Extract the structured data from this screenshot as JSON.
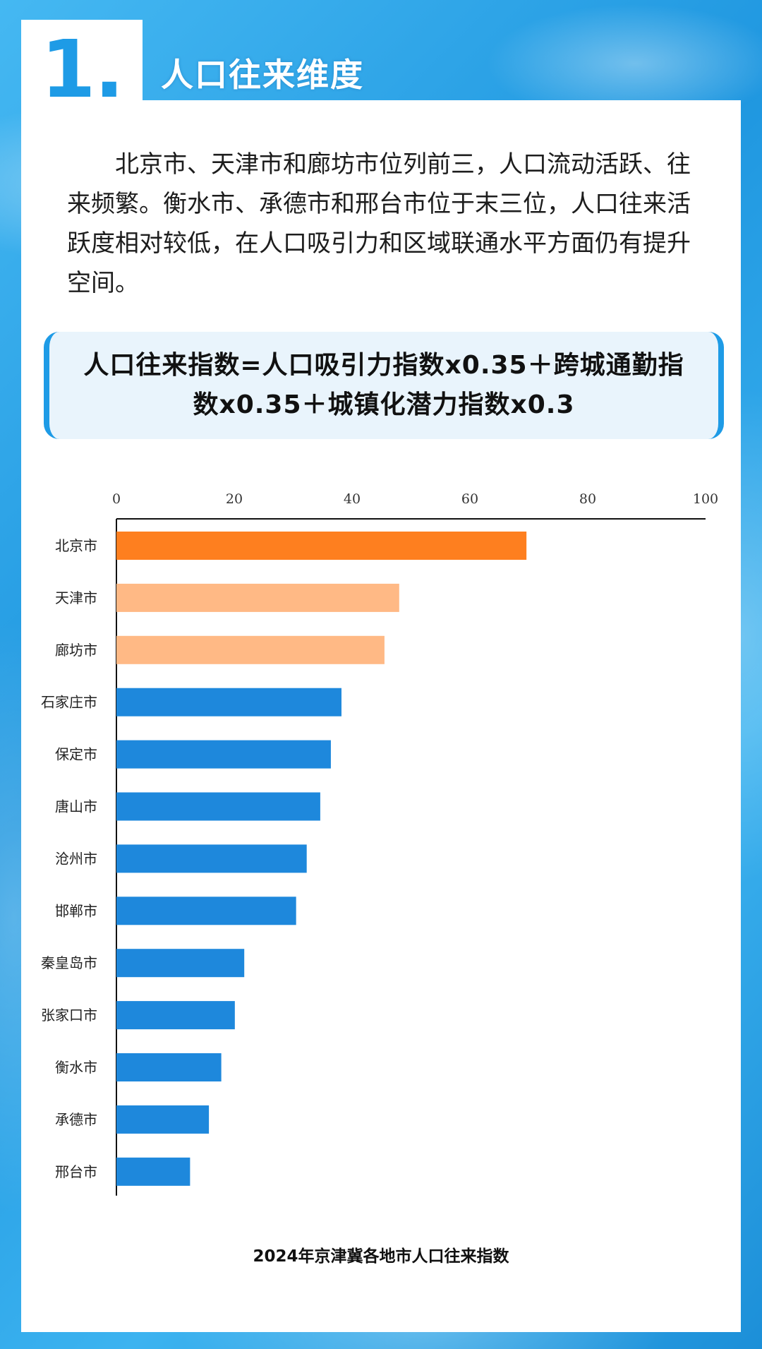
{
  "section": {
    "number": "1.",
    "title": "人口往来维度"
  },
  "intro_text": "北京市、天津市和廊坊市位列前三，人口流动活跃、往来频繁。衡水市、承德市和邢台市位于末三位，人口往来活跃度相对较低，在人口吸引力和区域联通水平方面仍有提升空间。",
  "formula": "人口往来指数=人口吸引力指数x0.35＋跨城通勤指数x0.35＋城镇化潜力指数x0.3",
  "colors": {
    "highlight": "#fe7f1f",
    "secondary": "#ffb985",
    "default": "#1e88dc",
    "accent": "#1e9be6"
  },
  "chart_data": {
    "type": "bar",
    "orientation": "horizontal",
    "title": "2024年京津冀各地市人口往来指数",
    "xlim": [
      0,
      100
    ],
    "xticks": [
      0,
      20,
      40,
      60,
      80,
      100
    ],
    "xaxis_position": "top",
    "categories": [
      "北京市",
      "天津市",
      "廊坊市",
      "石家庄市",
      "保定市",
      "唐山市",
      "沧州市",
      "邯郸市",
      "秦皇岛市",
      "张家口市",
      "衡水市",
      "承德市",
      "邢台市"
    ],
    "values": [
      69.6,
      48.0,
      45.5,
      38.2,
      36.4,
      34.6,
      32.3,
      30.5,
      21.7,
      20.1,
      17.8,
      15.7,
      12.5
    ],
    "bar_colors": [
      "#fe7f1f",
      "#ffb985",
      "#ffb985",
      "#1e88dc",
      "#1e88dc",
      "#1e88dc",
      "#1e88dc",
      "#1e88dc",
      "#1e88dc",
      "#1e88dc",
      "#1e88dc",
      "#1e88dc",
      "#1e88dc"
    ],
    "grid": false,
    "legend": "none"
  }
}
